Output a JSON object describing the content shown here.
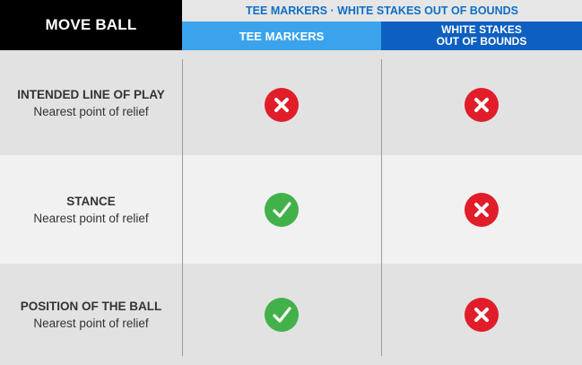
{
  "header": {
    "left_title": "MOVE BALL",
    "top_title": "TEE MARKERS · WHITE STAKES OUT OF BOUNDS",
    "columns": [
      {
        "label_lines": [
          "TEE MARKERS"
        ],
        "color": "#3aa3ec"
      },
      {
        "label_lines": [
          "WHITE STAKES",
          "OUT OF BOUNDS"
        ],
        "color": "#0d5fc1"
      }
    ]
  },
  "rows": [
    {
      "title": "INTENDED LINE OF PLAY",
      "subtitle": "Nearest point of relief",
      "tee_markers": "cross-icon",
      "white_stakes": "cross-icon"
    },
    {
      "title": "STANCE",
      "subtitle": "Nearest point of relief",
      "tee_markers": "check-icon",
      "white_stakes": "cross-icon"
    },
    {
      "title": "POSITION OF THE BALL",
      "subtitle": "Nearest point of relief",
      "tee_markers": "check-icon",
      "white_stakes": "cross-icon"
    }
  ],
  "colors": {
    "cross": "#e11d2a",
    "check": "#43b14a"
  }
}
